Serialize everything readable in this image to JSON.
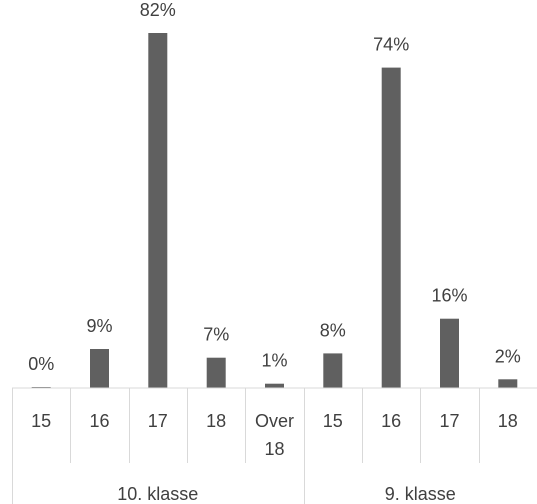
{
  "chart_data": {
    "type": "bar",
    "groups": [
      {
        "name": "10. klasse",
        "categories": [
          "15",
          "16",
          "17",
          "18",
          "Over 18"
        ],
        "values": [
          0,
          9,
          82,
          7,
          1
        ]
      },
      {
        "name": "9. klasse",
        "categories": [
          "15",
          "16",
          "17",
          "18"
        ],
        "values": [
          8,
          74,
          16,
          2
        ]
      }
    ],
    "value_suffix": "%",
    "ylim": [
      0,
      100
    ],
    "grid": false,
    "legend": "none",
    "bar_color": "#606060",
    "axis_color": "#d9d9d9",
    "label_color": "#404040"
  }
}
